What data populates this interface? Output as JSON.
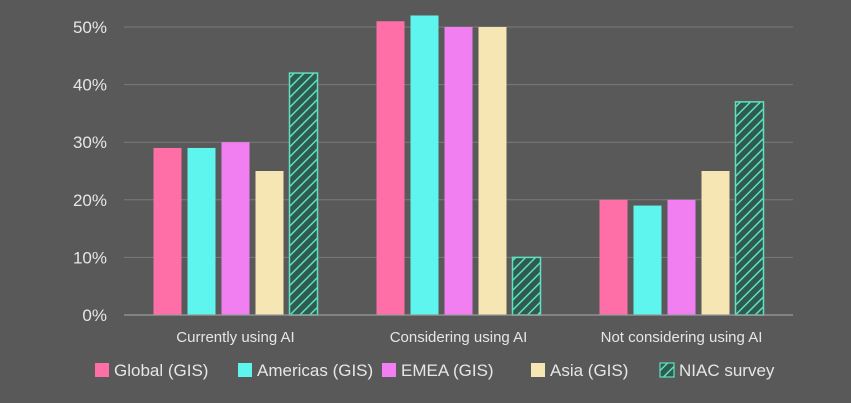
{
  "chart_data": {
    "type": "bar",
    "title": "",
    "xlabel": "",
    "ylabel": "",
    "ylim": [
      0,
      50
    ],
    "yticks": [
      0,
      10,
      20,
      30,
      40,
      50
    ],
    "ytick_labels": [
      "0%",
      "10%",
      "20%",
      "30%",
      "40%",
      "50%"
    ],
    "grid": true,
    "legend_position": "bottom",
    "categories": [
      "Currently using AI",
      "Considering using AI",
      "Not considering using AI"
    ],
    "series": [
      {
        "name": "Global (GIS)",
        "color": "#ff6fa7",
        "pattern": "solid",
        "values": [
          29,
          51,
          20
        ]
      },
      {
        "name": "Americas (GIS)",
        "color": "#5ff5ef",
        "pattern": "solid",
        "values": [
          29,
          52,
          19
        ]
      },
      {
        "name": "EMEA (GIS)",
        "color": "#f27ff2",
        "pattern": "solid",
        "values": [
          30,
          50,
          20
        ]
      },
      {
        "name": "Asia (GIS)",
        "color": "#f5e6b3",
        "pattern": "solid",
        "values": [
          25,
          50,
          25
        ]
      },
      {
        "name": "NIAC survey",
        "color": "#3fbf9f",
        "pattern": "hatched",
        "values": [
          42,
          10,
          37
        ]
      }
    ]
  }
}
